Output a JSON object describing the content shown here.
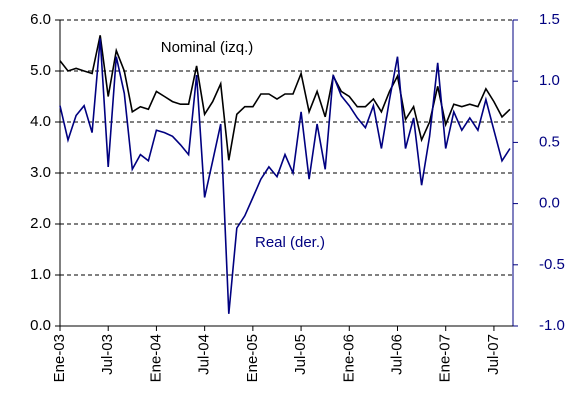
{
  "chart_data": {
    "type": "line",
    "categories": [
      "Ene-03",
      null,
      null,
      null,
      null,
      null,
      "Jul-03",
      null,
      null,
      null,
      null,
      null,
      "Ene-04",
      null,
      null,
      null,
      null,
      null,
      "Jul-04",
      null,
      null,
      null,
      null,
      null,
      "Ene-05",
      null,
      null,
      null,
      null,
      null,
      "Jul-05",
      null,
      null,
      null,
      null,
      null,
      "Ene-06",
      null,
      null,
      null,
      null,
      null,
      "Jul-06",
      null,
      null,
      null,
      null,
      null,
      "Ene-07",
      null,
      null,
      null,
      null,
      null,
      "Jul-07",
      null,
      null
    ],
    "series": [
      {
        "name": "Nominal (izq.)",
        "color": "#000000",
        "axis": "y",
        "values": [
          5.2,
          5.0,
          5.05,
          5.0,
          4.95,
          5.7,
          4.5,
          5.4,
          5.0,
          4.2,
          4.3,
          4.25,
          4.6,
          4.5,
          4.4,
          4.35,
          4.35,
          5.1,
          4.15,
          4.4,
          4.75,
          3.25,
          4.15,
          4.3,
          4.3,
          4.55,
          4.55,
          4.45,
          4.55,
          4.55,
          4.95,
          4.2,
          4.6,
          4.1,
          4.9,
          4.6,
          4.5,
          4.3,
          4.3,
          4.45,
          4.2,
          4.6,
          4.9,
          4.05,
          4.3,
          3.65,
          4.0,
          4.7,
          3.95,
          4.35,
          4.3,
          4.35,
          4.3,
          4.65,
          4.4,
          4.1,
          4.25
        ]
      },
      {
        "name": "Real (der.)",
        "color": "#000080",
        "axis": "y2",
        "values": [
          0.8,
          0.52,
          0.72,
          0.8,
          0.58,
          1.35,
          0.3,
          1.2,
          0.9,
          0.28,
          0.4,
          0.35,
          0.6,
          0.58,
          0.55,
          0.48,
          0.4,
          1.05,
          0.05,
          0.35,
          0.65,
          -0.9,
          -0.2,
          -0.1,
          0.05,
          0.2,
          0.3,
          0.22,
          0.4,
          0.25,
          0.75,
          0.2,
          0.65,
          0.28,
          1.05,
          0.88,
          0.8,
          0.7,
          0.62,
          0.8,
          0.45,
          0.85,
          1.2,
          0.45,
          0.7,
          0.15,
          0.55,
          1.15,
          0.45,
          0.75,
          0.6,
          0.7,
          0.6,
          0.85,
          0.6,
          0.35,
          0.45
        ]
      }
    ],
    "ylim": [
      0,
      6
    ],
    "yticks": [
      {
        "value": 0,
        "label": "0.0"
      },
      {
        "value": 1,
        "label": "1.0"
      },
      {
        "value": 2,
        "label": "2.0"
      },
      {
        "value": 3,
        "label": "3.0"
      },
      {
        "value": 4,
        "label": "4.0"
      },
      {
        "value": 5,
        "label": "5.0"
      },
      {
        "value": 6,
        "label": "6.0"
      }
    ],
    "y2lim": [
      -1,
      1.5
    ],
    "y2ticks": [
      {
        "value": -1,
        "label": "-1.0"
      },
      {
        "value": -0.5,
        "label": "-0.5"
      },
      {
        "value": 0,
        "label": "0.0"
      },
      {
        "value": 0.5,
        "label": "0.5"
      },
      {
        "value": 1,
        "label": "1.0"
      },
      {
        "value": 1.5,
        "label": "1.5"
      }
    ],
    "grid": true
  }
}
